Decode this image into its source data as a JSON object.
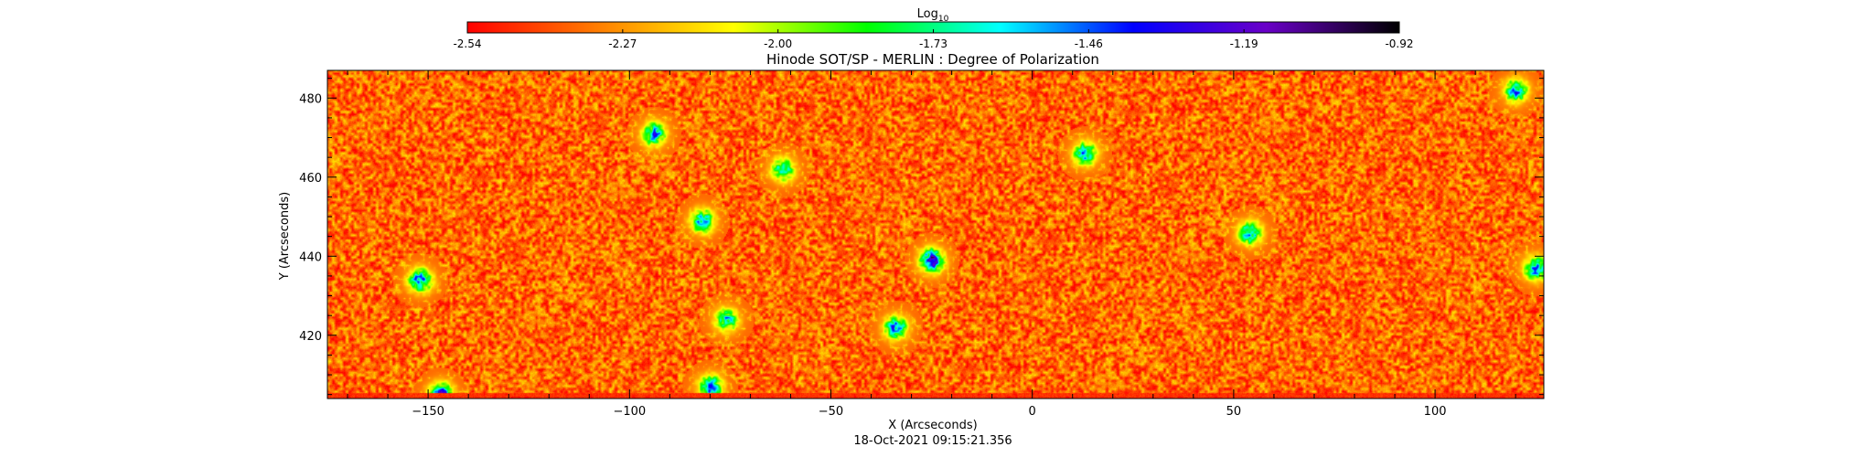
{
  "colorbar": {
    "label": "Log",
    "label_subscript": "10",
    "colors": [
      "#ff0000",
      "#ff8000",
      "#ffff00",
      "#00ff00",
      "#00ffff",
      "#0000ff",
      "#6a00c8",
      "#000000"
    ],
    "ticks": [
      "-2.54",
      "-2.27",
      "-2.00",
      "-1.73",
      "-1.46",
      "-1.19",
      "-0.92"
    ]
  },
  "chart_data": {
    "type": "heatmap",
    "title": "Hinode SOT/SP - MERLIN : Degree of Polarization",
    "xlabel": "X (Arcseconds)",
    "ylabel": "Y (Arcseconds)",
    "xlim": [
      -175,
      127
    ],
    "ylim": [
      404,
      487
    ],
    "xticks": [
      -150,
      -100,
      -50,
      0,
      50,
      100
    ],
    "yticks": [
      420,
      440,
      460,
      480
    ],
    "color_scale": "log10",
    "value_range": [
      -2.54,
      -0.92
    ],
    "background_level": -2.35,
    "features": [
      {
        "x": -152,
        "y": 434,
        "level": -1.3
      },
      {
        "x": -147,
        "y": 405,
        "level": -1.1
      },
      {
        "x": -82,
        "y": 449,
        "level": -1.4
      },
      {
        "x": -80,
        "y": 407,
        "level": -1.3
      },
      {
        "x": -76,
        "y": 424,
        "level": -1.5
      },
      {
        "x": -62,
        "y": 462,
        "level": -1.5
      },
      {
        "x": -25,
        "y": 439,
        "level": -1.05
      },
      {
        "x": -34,
        "y": 422,
        "level": -1.35
      },
      {
        "x": -94,
        "y": 471,
        "level": -1.4
      },
      {
        "x": 13,
        "y": 466,
        "level": -1.4
      },
      {
        "x": 54,
        "y": 446,
        "level": -1.4
      },
      {
        "x": 120,
        "y": 482,
        "level": -1.4
      },
      {
        "x": 125,
        "y": 437,
        "level": -1.3
      }
    ]
  },
  "timestamp": "18-Oct-2021 09:15:21.356"
}
